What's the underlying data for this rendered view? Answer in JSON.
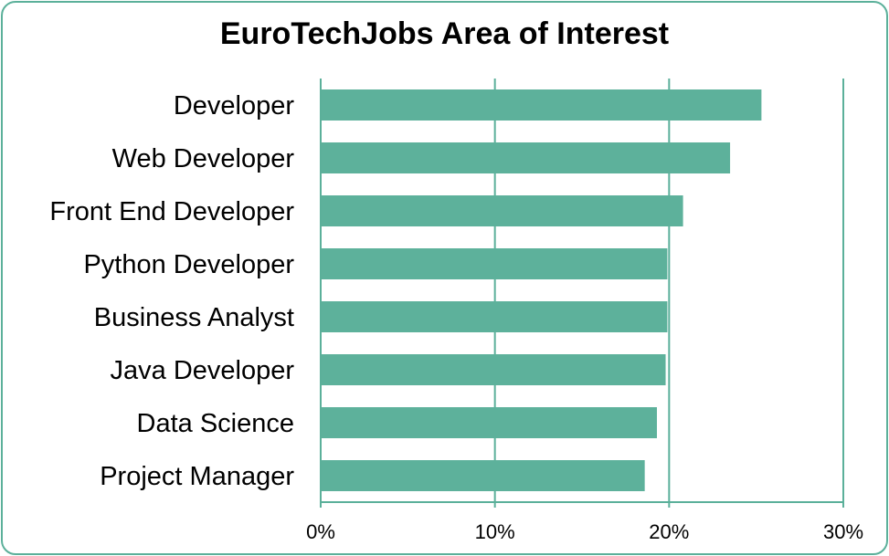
{
  "chart_data": {
    "type": "bar",
    "orientation": "horizontal",
    "title": "EuroTechJobs Area of Interest",
    "categories": [
      "Developer",
      "Web Developer",
      "Front End Developer",
      "Python Developer",
      "Business Analyst",
      "Java Developer",
      "Data Science",
      "Project Manager"
    ],
    "values": [
      25.3,
      23.5,
      20.8,
      19.9,
      19.9,
      19.8,
      19.3,
      18.6
    ],
    "unit": "%",
    "xlim": [
      0,
      30
    ],
    "xticks": [
      "0%",
      "10%",
      "20%",
      "30%"
    ],
    "xtick_values": [
      0,
      10,
      20,
      30
    ],
    "grid": true,
    "legend": "none",
    "bar_color": "#5db19b",
    "frame_color": "#5bb09a",
    "axis_color": "#5bb09a"
  }
}
